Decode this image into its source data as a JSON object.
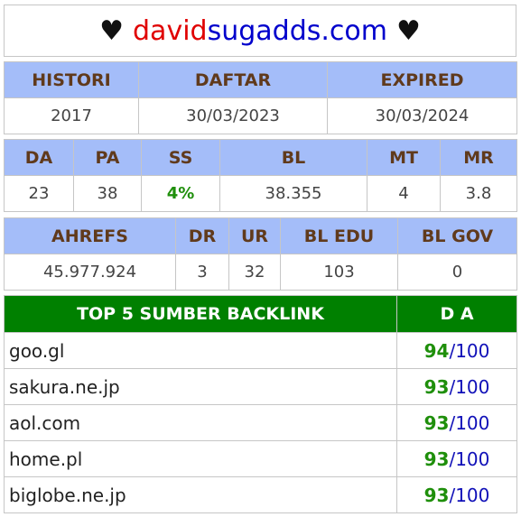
{
  "header": {
    "heart_left": "♥",
    "site_part1": "david",
    "site_part2": "sugadds.com",
    "heart_right": "♥",
    "colors": {
      "part1": "#e00000",
      "part2": "#0000cc"
    }
  },
  "domain_info": {
    "headers": [
      "HISTORI",
      "DAFTAR",
      "EXPIRED"
    ],
    "values": [
      "2017",
      "30/03/2023",
      "30/03/2024"
    ]
  },
  "metrics": {
    "headers": [
      "DA",
      "PA",
      "SS",
      "BL",
      "MT",
      "MR"
    ],
    "values": [
      "23",
      "38",
      "4%",
      "38.355",
      "4",
      "3.8"
    ],
    "ss_color": "#1f8f0b"
  },
  "ahrefs": {
    "headers": [
      "AHREFS",
      "DR",
      "UR",
      "BL EDU",
      "BL GOV"
    ],
    "values": [
      "45.977.924",
      "3",
      "32",
      "103",
      "0"
    ]
  },
  "backlinks": {
    "title": "TOP 5 SUMBER BACKLINK",
    "da_header": "D A",
    "rows": [
      {
        "source": "goo.gl",
        "score": "94",
        "max": "/100"
      },
      {
        "source": "sakura.ne.jp",
        "score": "93",
        "max": "/100"
      },
      {
        "source": "aol.com",
        "score": "93",
        "max": "/100"
      },
      {
        "source": "home.pl",
        "score": "93",
        "max": "/100"
      },
      {
        "source": "biglobe.ne.jp",
        "score": "93",
        "max": "/100"
      }
    ],
    "colors": {
      "header_bg": "#008000",
      "score": "#1f8f0b",
      "max": "#1010b8"
    }
  }
}
